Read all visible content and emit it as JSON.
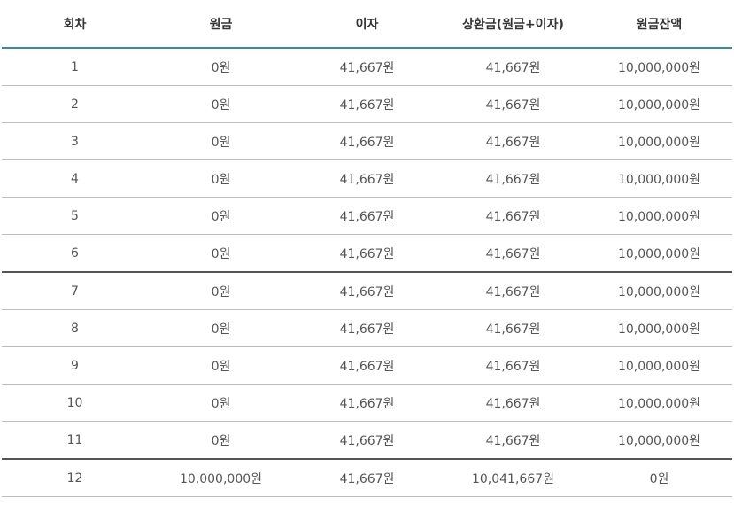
{
  "table": {
    "headers": [
      "회차",
      "원금",
      "이자",
      "상환금(원금+이자)",
      "원금잔액"
    ],
    "rows": [
      [
        "1",
        "0원",
        "41,667원",
        "41,667원",
        "10,000,000원"
      ],
      [
        "2",
        "0원",
        "41,667원",
        "41,667원",
        "10,000,000원"
      ],
      [
        "3",
        "0원",
        "41,667원",
        "41,667원",
        "10,000,000원"
      ],
      [
        "4",
        "0원",
        "41,667원",
        "41,667원",
        "10,000,000원"
      ],
      [
        "5",
        "0원",
        "41,667원",
        "41,667원",
        "10,000,000원"
      ],
      [
        "6",
        "0원",
        "41,667원",
        "41,667원",
        "10,000,000원"
      ],
      [
        "7",
        "0원",
        "41,667원",
        "41,667원",
        "10,000,000원"
      ],
      [
        "8",
        "0원",
        "41,667원",
        "41,667원",
        "10,000,000원"
      ],
      [
        "9",
        "0원",
        "41,667원",
        "41,667원",
        "10,000,000원"
      ],
      [
        "10",
        "0원",
        "41,667원",
        "41,667원",
        "10,000,000원"
      ],
      [
        "11",
        "0원",
        "41,667원",
        "41,667원",
        "10,000,000원"
      ],
      [
        "12",
        "10,000,000원",
        "41,667원",
        "10,041,667원",
        "0원"
      ]
    ]
  },
  "colors": {
    "header_rule": "#3a8a9c",
    "row_rule": "#bdbdbd",
    "group_rule": "#555555"
  }
}
